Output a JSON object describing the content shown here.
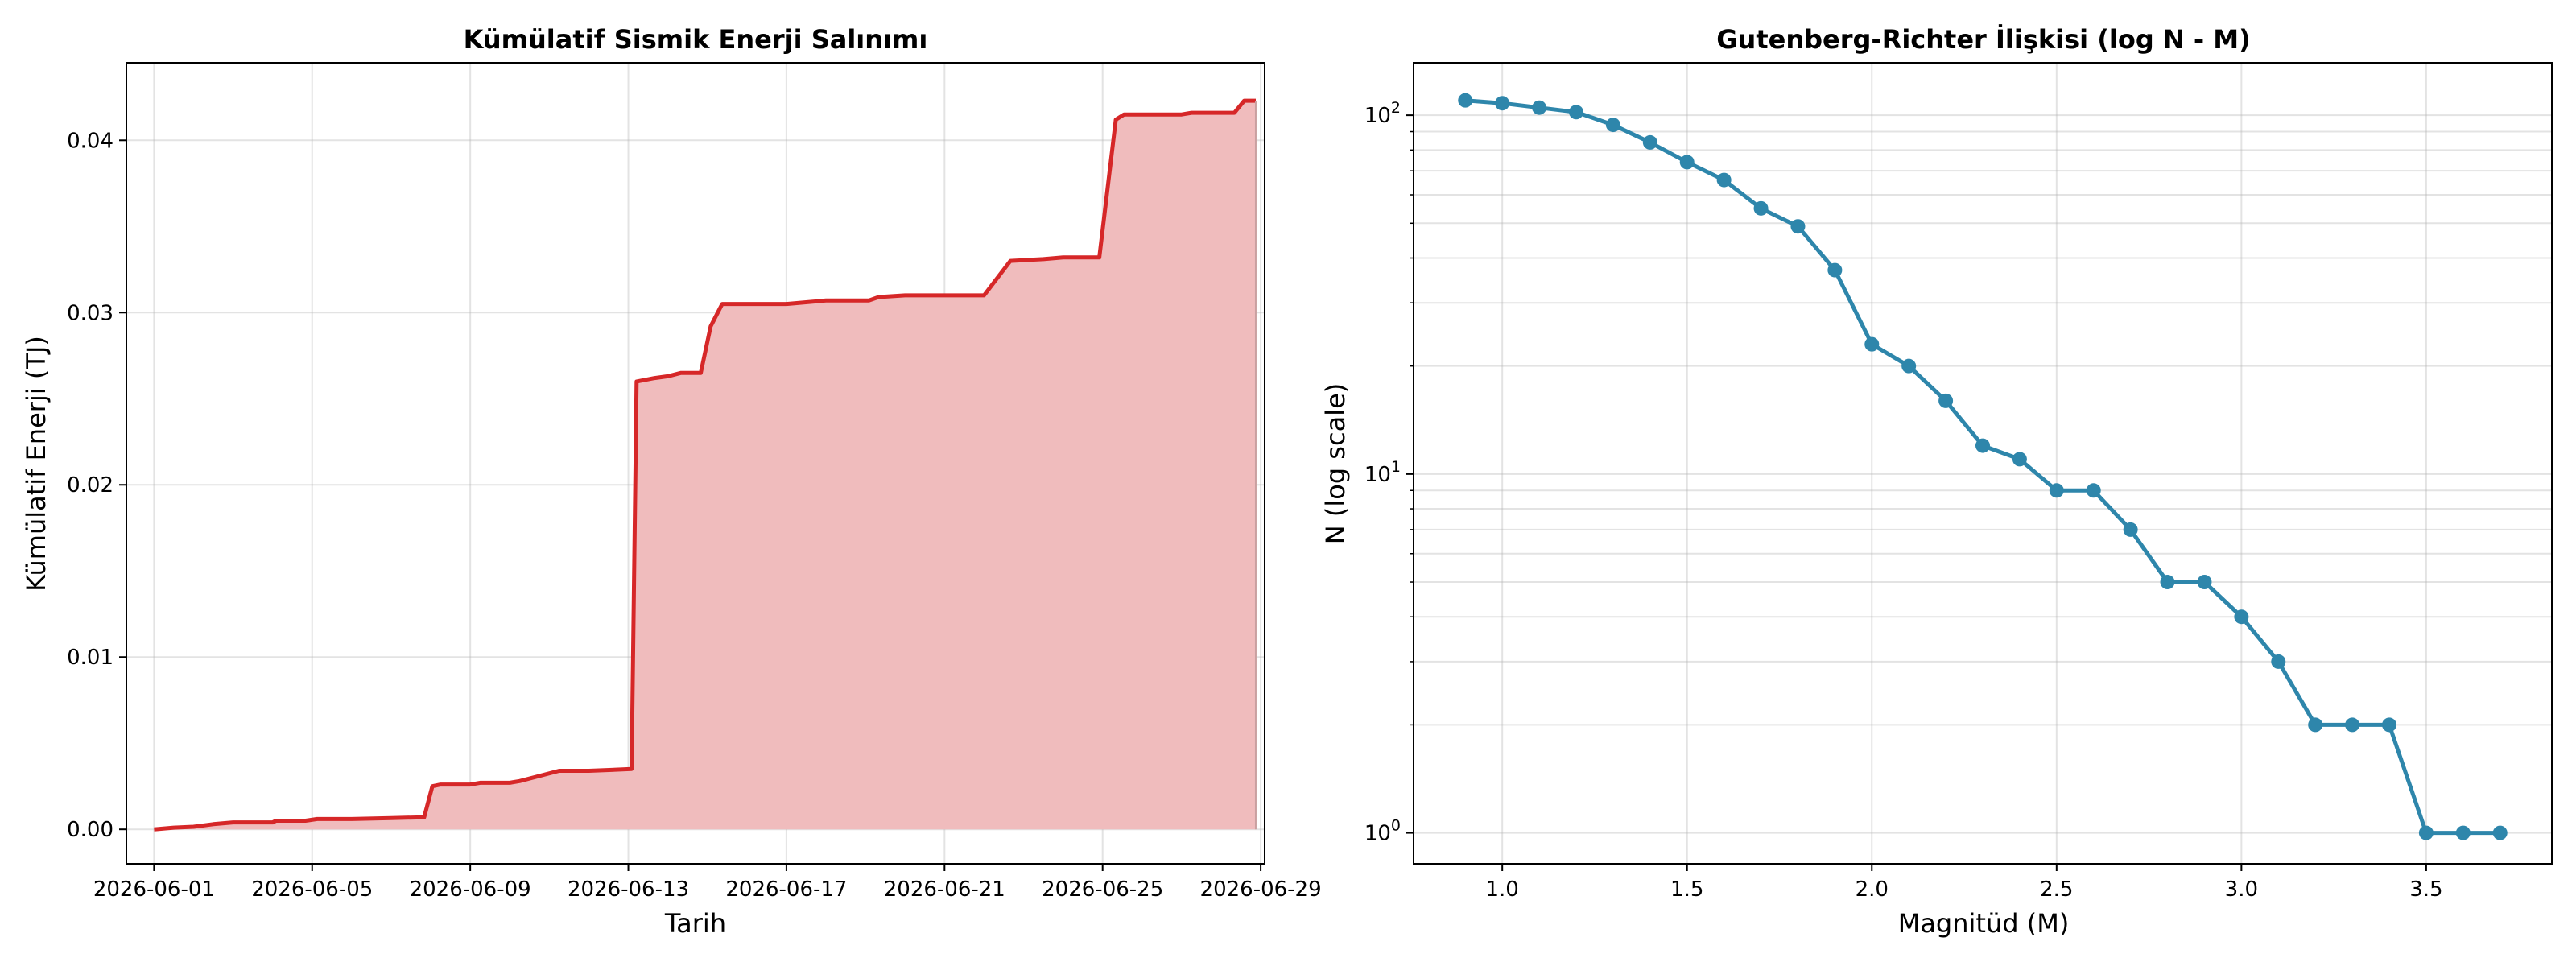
{
  "chart_data": [
    {
      "type": "area",
      "title": "Kümülatif Sismik Enerji Salınımı",
      "xlabel": "Tarih",
      "ylabel": "Kümülatif Enerji (TJ)",
      "grid": true,
      "color": "#d62728",
      "fill_color": "#f0bcbd",
      "x_ticks": [
        "2026-06-01",
        "2026-06-05",
        "2026-06-09",
        "2026-06-13",
        "2026-06-17",
        "2026-06-21",
        "2026-06-25",
        "2026-06-29"
      ],
      "y_ticks": [
        "0.00",
        "0.01",
        "0.02",
        "0.03",
        "0.04"
      ],
      "xlim": [
        "2026-05-31",
        "2026-06-29"
      ],
      "ylim": [
        -0.002,
        0.0445
      ],
      "series": [
        {
          "points": [
            [
              "2026-06-01",
              0.0
            ],
            [
              "2026-06-01 12:00",
              0.0001
            ],
            [
              "2026-06-02",
              0.00015
            ],
            [
              "2026-06-02 12:00",
              0.0003
            ],
            [
              "2026-06-03",
              0.0004
            ],
            [
              "2026-06-04",
              0.0004
            ],
            [
              "2026-06-04 02:00",
              0.0005
            ],
            [
              "2026-06-04 20:00",
              0.0005
            ],
            [
              "2026-06-05 03:00",
              0.0006
            ],
            [
              "2026-06-06",
              0.0006
            ],
            [
              "2026-06-07",
              0.00065
            ],
            [
              "2026-06-07 20:00",
              0.0007
            ],
            [
              "2026-06-08 01:00",
              0.0025
            ],
            [
              "2026-06-08 06:00",
              0.0026
            ],
            [
              "2026-06-09",
              0.0026
            ],
            [
              "2026-06-09 06:00",
              0.0027
            ],
            [
              "2026-06-10",
              0.0027
            ],
            [
              "2026-06-10 06:00",
              0.0028
            ],
            [
              "2026-06-11 06:00",
              0.0034
            ],
            [
              "2026-06-12",
              0.0034
            ],
            [
              "2026-06-13 02:00",
              0.0035
            ],
            [
              "2026-06-13 05:00",
              0.026
            ],
            [
              "2026-06-13 16:00",
              0.0262
            ],
            [
              "2026-06-14",
              0.0263
            ],
            [
              "2026-06-14 08:00",
              0.0265
            ],
            [
              "2026-06-14 20:00",
              0.0265
            ],
            [
              "2026-06-15 02:00",
              0.0292
            ],
            [
              "2026-06-15 09:00",
              0.0305
            ],
            [
              "2026-06-17",
              0.0305
            ],
            [
              "2026-06-18",
              0.0307
            ],
            [
              "2026-06-19 02:00",
              0.0307
            ],
            [
              "2026-06-19 08:00",
              0.0309
            ],
            [
              "2026-06-20",
              0.031
            ],
            [
              "2026-06-22",
              0.031
            ],
            [
              "2026-06-22 16:00",
              0.033
            ],
            [
              "2026-06-23 12:00",
              0.0331
            ],
            [
              "2026-06-24",
              0.0332
            ],
            [
              "2026-06-24 22:00",
              0.0332
            ],
            [
              "2026-06-25 08:00",
              0.0412
            ],
            [
              "2026-06-25 13:00",
              0.0415
            ],
            [
              "2026-06-27",
              0.0415
            ],
            [
              "2026-06-27 06:00",
              0.0416
            ],
            [
              "2026-06-28 08:00",
              0.0416
            ],
            [
              "2026-06-28 14:00",
              0.0423
            ],
            [
              "2026-06-28 21:00",
              0.0423
            ]
          ]
        }
      ]
    },
    {
      "type": "line",
      "title": "Gutenberg-Richter İlişkisi (log N - M)",
      "xlabel": "Magnitüd (M)",
      "ylabel": "N (log scale)",
      "y_scale": "log",
      "grid": true,
      "color": "#2e86ab",
      "x_ticks": [
        "1.0",
        "1.5",
        "2.0",
        "2.5",
        "3.0",
        "3.5"
      ],
      "xlim": [
        0.76,
        3.84
      ],
      "ylim": [
        0.82,
        140
      ],
      "y_major_ticks": [
        1,
        10,
        100
      ],
      "series": [
        {
          "x": [
            0.9,
            1.0,
            1.1,
            1.2,
            1.3,
            1.4,
            1.5,
            1.6,
            1.7,
            1.8,
            1.9,
            2.0,
            2.1,
            2.2,
            2.3,
            2.4,
            2.5,
            2.6,
            2.7,
            2.8,
            2.9,
            3.0,
            3.1,
            3.2,
            3.3,
            3.4,
            3.5,
            3.6,
            3.7
          ],
          "y": [
            110,
            108,
            105,
            102,
            94,
            84,
            74,
            66,
            55,
            49,
            37,
            23,
            20,
            16,
            12,
            11,
            9,
            9,
            7,
            5,
            5,
            4,
            3,
            2,
            2,
            2,
            1,
            1,
            1
          ]
        }
      ]
    }
  ]
}
